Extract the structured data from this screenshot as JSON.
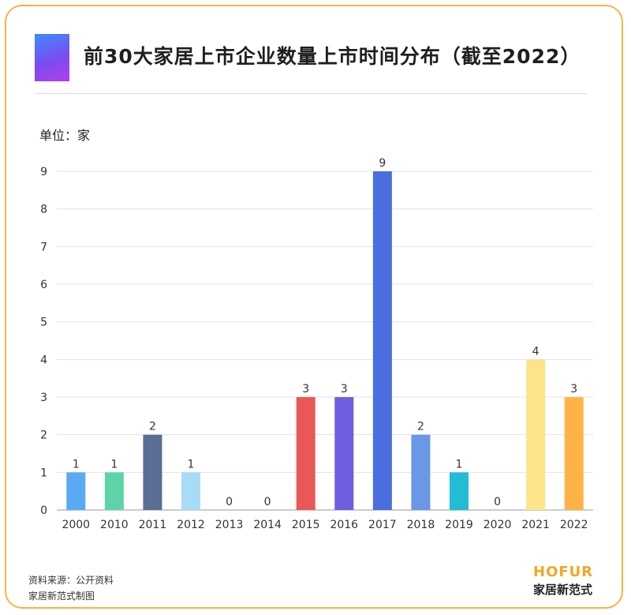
{
  "chart_data": {
    "type": "bar",
    "title": "前30大家居上市企业数量上市时间分布（截至2022）",
    "unit_label": "单位：家",
    "categories": [
      "2000",
      "2010",
      "2011",
      "2012",
      "2013",
      "2014",
      "2015",
      "2016",
      "2017",
      "2018",
      "2019",
      "2020",
      "2021",
      "2022"
    ],
    "values": [
      1,
      1,
      2,
      1,
      0,
      0,
      3,
      3,
      9,
      2,
      1,
      0,
      4,
      3
    ],
    "colors": [
      "#5aaaf3",
      "#5fd3a8",
      "#5a6d95",
      "#a8dcf6",
      "#cccccc",
      "#cccccc",
      "#e95858",
      "#6f5ee0",
      "#4a6ee0",
      "#6a98e6",
      "#22bcd4",
      "#cccccc",
      "#fde48a",
      "#ffb347"
    ],
    "ylim": [
      0,
      9
    ],
    "yticks": [
      0,
      1,
      2,
      3,
      4,
      5,
      6,
      7,
      8,
      9
    ],
    "xlabel": "",
    "ylabel": "",
    "grid": true,
    "legend": "none",
    "data_labels": true
  },
  "footer": {
    "source": "资料来源：公开资料",
    "maker": "家居新范式制图"
  },
  "brand": {
    "name_en": "HOFUR",
    "name_cn": "家居新范式",
    "accent_color": "#f5a623",
    "border_color": "#f2b53f"
  }
}
